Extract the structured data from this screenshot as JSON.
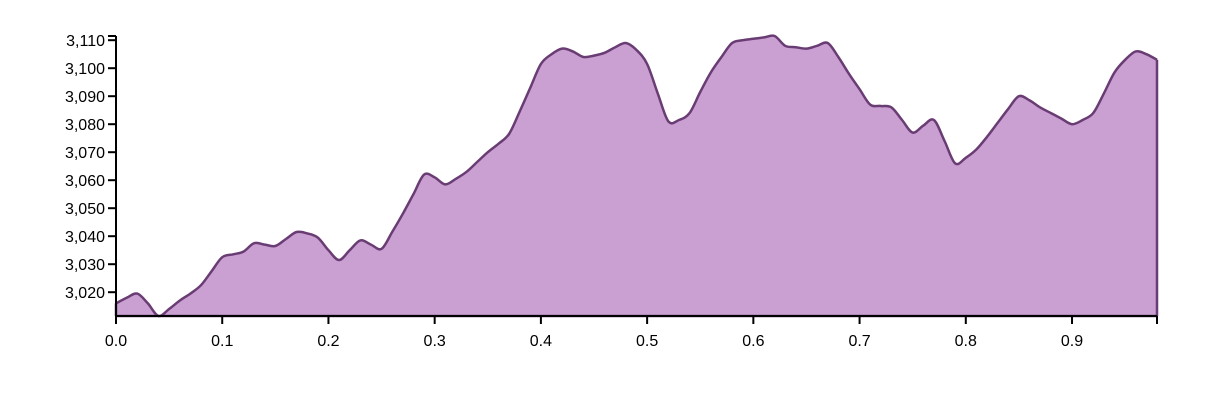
{
  "chart_data": {
    "type": "area",
    "title": "",
    "xlabel": "",
    "ylabel": "",
    "xlim": [
      0,
      0.98
    ],
    "ylim": [
      3011.5,
      3111.5
    ],
    "grid": false,
    "fill_color": "#c9a0d1",
    "line_color": "#6a3c74",
    "x_ticks": [
      {
        "value": 0.0,
        "label": "0.0"
      },
      {
        "value": 0.1,
        "label": "0.1"
      },
      {
        "value": 0.2,
        "label": "0.2"
      },
      {
        "value": 0.3,
        "label": "0.3"
      },
      {
        "value": 0.4,
        "label": "0.4"
      },
      {
        "value": 0.5,
        "label": "0.5"
      },
      {
        "value": 0.6,
        "label": "0.6"
      },
      {
        "value": 0.7,
        "label": "0.7"
      },
      {
        "value": 0.8,
        "label": "0.8"
      },
      {
        "value": 0.9,
        "label": "0.9"
      }
    ],
    "y_ticks": [
      {
        "value": 3020,
        "label": "3,020"
      },
      {
        "value": 3030,
        "label": "3,030"
      },
      {
        "value": 3040,
        "label": "3,040"
      },
      {
        "value": 3050,
        "label": "3,050"
      },
      {
        "value": 3060,
        "label": "3,060"
      },
      {
        "value": 3070,
        "label": "3,070"
      },
      {
        "value": 3080,
        "label": "3,080"
      },
      {
        "value": 3090,
        "label": "3,090"
      },
      {
        "value": 3100,
        "label": "3,100"
      },
      {
        "value": 3110,
        "label": "3,110"
      }
    ],
    "x": [
      0.0,
      0.01,
      0.02,
      0.03,
      0.04,
      0.05,
      0.06,
      0.07,
      0.08,
      0.09,
      0.1,
      0.11,
      0.12,
      0.13,
      0.14,
      0.15,
      0.16,
      0.17,
      0.18,
      0.19,
      0.2,
      0.21,
      0.22,
      0.23,
      0.24,
      0.25,
      0.26,
      0.27,
      0.28,
      0.29,
      0.3,
      0.31,
      0.32,
      0.33,
      0.34,
      0.35,
      0.36,
      0.37,
      0.38,
      0.39,
      0.4,
      0.41,
      0.42,
      0.43,
      0.44,
      0.45,
      0.46,
      0.47,
      0.48,
      0.49,
      0.5,
      0.51,
      0.52,
      0.53,
      0.54,
      0.55,
      0.56,
      0.57,
      0.58,
      0.59,
      0.6,
      0.61,
      0.62,
      0.63,
      0.64,
      0.65,
      0.66,
      0.67,
      0.68,
      0.69,
      0.7,
      0.71,
      0.72,
      0.73,
      0.74,
      0.75,
      0.76,
      0.77,
      0.78,
      0.79,
      0.8,
      0.81,
      0.82,
      0.83,
      0.84,
      0.85,
      0.86,
      0.87,
      0.88,
      0.89,
      0.9,
      0.91,
      0.92,
      0.93,
      0.94,
      0.95,
      0.96,
      0.97,
      0.98
    ],
    "y": [
      3016,
      3018,
      3019.5,
      3016,
      3011.5,
      3014,
      3017,
      3019.5,
      3022.5,
      3027.5,
      3032.5,
      3033.5,
      3034.5,
      3037.5,
      3037,
      3036.5,
      3039,
      3041.5,
      3041,
      3039.5,
      3035,
      3031.5,
      3035,
      3038.5,
      3037,
      3035.5,
      3041.5,
      3048,
      3055,
      3062,
      3061,
      3058.5,
      3060.5,
      3063,
      3066.5,
      3070,
      3073,
      3076.5,
      3084.5,
      3093,
      3101.5,
      3105,
      3107,
      3106,
      3104,
      3104.5,
      3105.5,
      3107.5,
      3109,
      3106.5,
      3101.5,
      3091,
      3081,
      3081.5,
      3084,
      3091.5,
      3098.5,
      3104,
      3109,
      3110,
      3110.5,
      3111,
      3111.5,
      3108,
      3107.5,
      3107,
      3108,
      3109,
      3104,
      3098,
      3092.5,
      3087,
      3086.5,
      3086,
      3081.5,
      3077,
      3079.5,
      3081.5,
      3074,
      3066,
      3068,
      3071,
      3075.5,
      3080.5,
      3085.5,
      3090,
      3088.5,
      3086,
      3084,
      3082,
      3080,
      3081.5,
      3084,
      3091,
      3098.5,
      3103,
      3106,
      3105,
      3103
    ]
  }
}
